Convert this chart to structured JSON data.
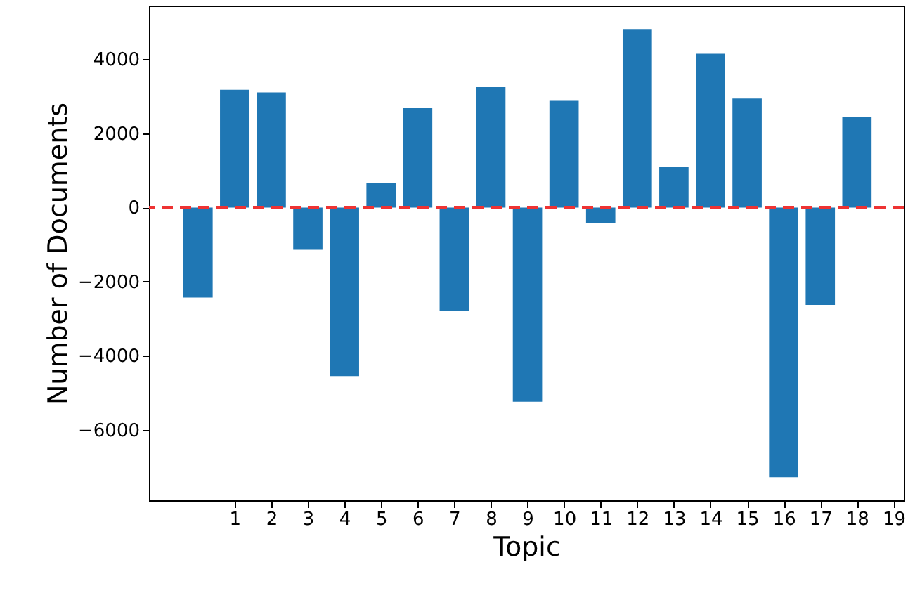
{
  "chart_data": {
    "type": "bar",
    "xlabel": "Topic",
    "ylabel": "Number of Documents",
    "x": [
      0,
      1,
      2,
      3,
      4,
      5,
      6,
      7,
      8,
      9,
      10,
      11,
      12,
      13,
      14,
      15,
      16,
      17,
      18
    ],
    "values": [
      -2430,
      3180,
      3110,
      -1140,
      -4550,
      670,
      2680,
      -2790,
      3250,
      -5240,
      2880,
      -420,
      4820,
      1100,
      4150,
      2940,
      -7280,
      -2630,
      2440
    ],
    "color": "#1f77b4",
    "xlim": [
      -1.34,
      19.28
    ],
    "xticks": [
      1,
      2,
      3,
      4,
      5,
      6,
      7,
      8,
      9,
      10,
      11,
      12,
      13,
      14,
      15,
      16,
      17,
      18,
      19
    ],
    "ylim": [
      -7900,
      5450
    ],
    "yticks": [
      -6000,
      -4000,
      -2000,
      0,
      2000,
      4000
    ],
    "ref_lines": [
      {
        "axis": "y",
        "value": 0,
        "color": "#ee3333",
        "line_style": "dashed"
      }
    ],
    "grid": false
  }
}
